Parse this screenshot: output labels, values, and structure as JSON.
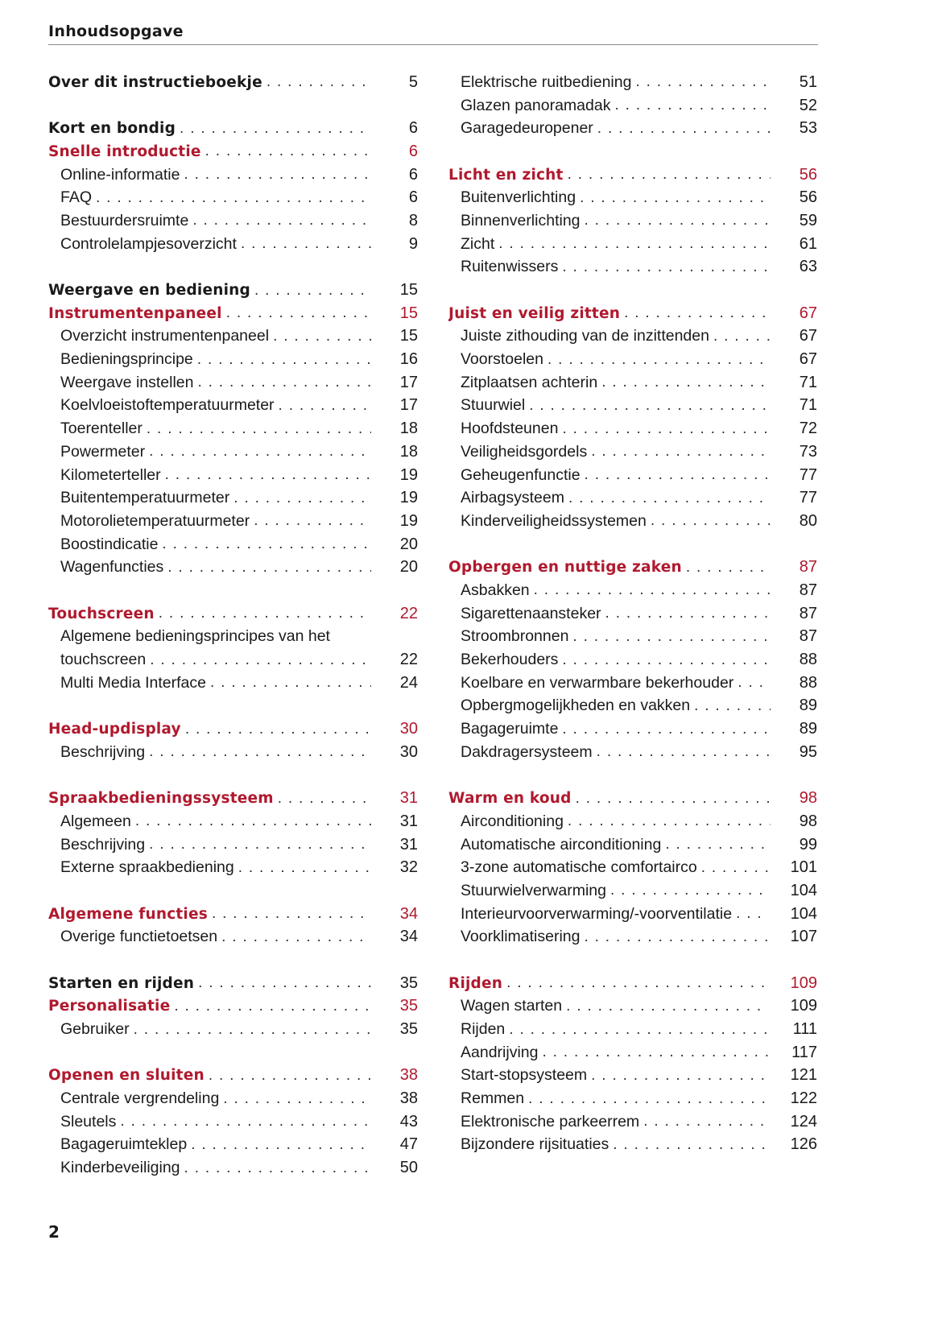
{
  "header": {
    "title": "Inhoudsopgave"
  },
  "accent_color": "#b0192e",
  "page_number": "2",
  "columns": [
    {
      "entries": [
        {
          "type": "chapter",
          "title": "Over dit instructieboekje",
          "page": "5"
        },
        {
          "type": "spacer"
        },
        {
          "type": "chapter",
          "title": "Kort en bondig",
          "page": "6"
        },
        {
          "type": "section",
          "title": "Snelle introductie",
          "page": "6"
        },
        {
          "type": "item",
          "title": "Online-informatie",
          "page": "6"
        },
        {
          "type": "item",
          "title": "FAQ",
          "page": "6"
        },
        {
          "type": "item",
          "title": "Bestuurdersruimte",
          "page": "8"
        },
        {
          "type": "item",
          "title": "Controlelampjesoverzicht",
          "page": "9"
        },
        {
          "type": "spacer"
        },
        {
          "type": "chapter",
          "title": "Weergave en bediening",
          "page": "15"
        },
        {
          "type": "section",
          "title": "Instrumentenpaneel",
          "page": "15"
        },
        {
          "type": "item",
          "title": "Overzicht instrumentenpaneel",
          "page": "15"
        },
        {
          "type": "item",
          "title": "Bedieningsprincipe",
          "page": "16"
        },
        {
          "type": "item",
          "title": "Weergave instellen",
          "page": "17"
        },
        {
          "type": "item",
          "title": "Koelvloeistoftemperatuurmeter",
          "page": "17"
        },
        {
          "type": "item",
          "title": "Toerenteller",
          "page": "18"
        },
        {
          "type": "item",
          "title": "Powermeter",
          "page": "18"
        },
        {
          "type": "item",
          "title": "Kilometerteller",
          "page": "19"
        },
        {
          "type": "item",
          "title": "Buitentemperatuurmeter",
          "page": "19"
        },
        {
          "type": "item",
          "title": "Motorolietemperatuurmeter",
          "page": "19"
        },
        {
          "type": "item",
          "title": "Boostindicatie",
          "page": "20"
        },
        {
          "type": "item",
          "title": "Wagenfuncties",
          "page": "20"
        },
        {
          "type": "spacer"
        },
        {
          "type": "section",
          "title": "Touchscreen",
          "page": "22"
        },
        {
          "type": "item",
          "title": "Algemene bedieningsprincipes van het",
          "page": ""
        },
        {
          "type": "item",
          "title": "touchscreen",
          "page": "22"
        },
        {
          "type": "item",
          "title": "Multi Media Interface",
          "page": "24"
        },
        {
          "type": "spacer"
        },
        {
          "type": "section",
          "title": "Head-updisplay",
          "page": "30"
        },
        {
          "type": "item",
          "title": "Beschrijving",
          "page": "30"
        },
        {
          "type": "spacer"
        },
        {
          "type": "section",
          "title": "Spraakbedieningssysteem",
          "page": "31"
        },
        {
          "type": "item",
          "title": "Algemeen",
          "page": "31"
        },
        {
          "type": "item",
          "title": "Beschrijving",
          "page": "31"
        },
        {
          "type": "item",
          "title": "Externe spraakbediening",
          "page": "32"
        },
        {
          "type": "spacer"
        },
        {
          "type": "section",
          "title": "Algemene functies",
          "page": "34"
        },
        {
          "type": "item",
          "title": "Overige functietoetsen",
          "page": "34"
        },
        {
          "type": "spacer"
        },
        {
          "type": "chapter",
          "title": "Starten en rijden",
          "page": "35"
        },
        {
          "type": "section",
          "title": "Personalisatie",
          "page": "35"
        },
        {
          "type": "item",
          "title": "Gebruiker",
          "page": "35"
        },
        {
          "type": "spacer"
        },
        {
          "type": "section",
          "title": "Openen en sluiten",
          "page": "38"
        },
        {
          "type": "item",
          "title": "Centrale vergrendeling",
          "page": "38"
        },
        {
          "type": "item",
          "title": "Sleutels",
          "page": "43"
        },
        {
          "type": "item",
          "title": "Bagageruimteklep",
          "page": "47"
        },
        {
          "type": "item",
          "title": "Kinderbeveiliging",
          "page": "50"
        }
      ]
    },
    {
      "entries": [
        {
          "type": "item",
          "title": "Elektrische ruitbediening",
          "page": "51"
        },
        {
          "type": "item",
          "title": "Glazen panoramadak",
          "page": "52"
        },
        {
          "type": "item",
          "title": "Garagedeuropener",
          "page": "53"
        },
        {
          "type": "spacer"
        },
        {
          "type": "section",
          "title": "Licht en zicht",
          "page": "56"
        },
        {
          "type": "item",
          "title": "Buitenverlichting",
          "page": "56"
        },
        {
          "type": "item",
          "title": "Binnenverlichting",
          "page": "59"
        },
        {
          "type": "item",
          "title": "Zicht",
          "page": "61"
        },
        {
          "type": "item",
          "title": "Ruitenwissers",
          "page": "63"
        },
        {
          "type": "spacer"
        },
        {
          "type": "section",
          "title": "Juist en veilig zitten",
          "page": "67"
        },
        {
          "type": "item",
          "title": "Juiste zithouding van de inzittenden",
          "page": "67"
        },
        {
          "type": "item",
          "title": "Voorstoelen",
          "page": "67"
        },
        {
          "type": "item",
          "title": "Zitplaatsen achterin",
          "page": "71"
        },
        {
          "type": "item",
          "title": "Stuurwiel",
          "page": "71"
        },
        {
          "type": "item",
          "title": "Hoofdsteunen",
          "page": "72"
        },
        {
          "type": "item",
          "title": "Veiligheidsgordels",
          "page": "73"
        },
        {
          "type": "item",
          "title": "Geheugenfunctie",
          "page": "77"
        },
        {
          "type": "item",
          "title": "Airbagsysteem",
          "page": "77"
        },
        {
          "type": "item",
          "title": "Kinderveiligheidssystemen",
          "page": "80"
        },
        {
          "type": "spacer"
        },
        {
          "type": "section",
          "title": "Opbergen en nuttige zaken",
          "page": "87"
        },
        {
          "type": "item",
          "title": "Asbakken",
          "page": "87"
        },
        {
          "type": "item",
          "title": "Sigarettenaansteker",
          "page": "87"
        },
        {
          "type": "item",
          "title": "Stroombronnen",
          "page": "87"
        },
        {
          "type": "item",
          "title": "Bekerhouders",
          "page": "88"
        },
        {
          "type": "item",
          "title": "Koelbare en verwarmbare bekerhouder",
          "page": "88"
        },
        {
          "type": "item",
          "title": "Opbergmogelijkheden en vakken",
          "page": "89"
        },
        {
          "type": "item",
          "title": "Bagageruimte",
          "page": "89"
        },
        {
          "type": "item",
          "title": "Dakdragersysteem",
          "page": "95"
        },
        {
          "type": "spacer"
        },
        {
          "type": "section",
          "title": "Warm en koud",
          "page": "98"
        },
        {
          "type": "item",
          "title": "Airconditioning",
          "page": "98"
        },
        {
          "type": "item",
          "title": "Automatische airconditioning",
          "page": "99"
        },
        {
          "type": "item",
          "title": "3-zone automatische comfortairco",
          "page": "101"
        },
        {
          "type": "item",
          "title": "Stuurwielverwarming",
          "page": "104"
        },
        {
          "type": "item",
          "title": "Interieurvoorverwarming/-voorventilatie",
          "page": "104"
        },
        {
          "type": "item",
          "title": "Voorklimatisering",
          "page": "107"
        },
        {
          "type": "spacer"
        },
        {
          "type": "section",
          "title": "Rijden",
          "page": "109"
        },
        {
          "type": "item",
          "title": "Wagen starten",
          "page": "109"
        },
        {
          "type": "item",
          "title": "Rijden",
          "page": "111"
        },
        {
          "type": "item",
          "title": "Aandrijving",
          "page": "117"
        },
        {
          "type": "item",
          "title": "Start-stopsysteem",
          "page": "121"
        },
        {
          "type": "item",
          "title": "Remmen",
          "page": "122"
        },
        {
          "type": "item",
          "title": "Elektronische parkeerrem",
          "page": "124"
        },
        {
          "type": "item",
          "title": "Bijzondere rijsituaties",
          "page": "126"
        }
      ]
    }
  ]
}
